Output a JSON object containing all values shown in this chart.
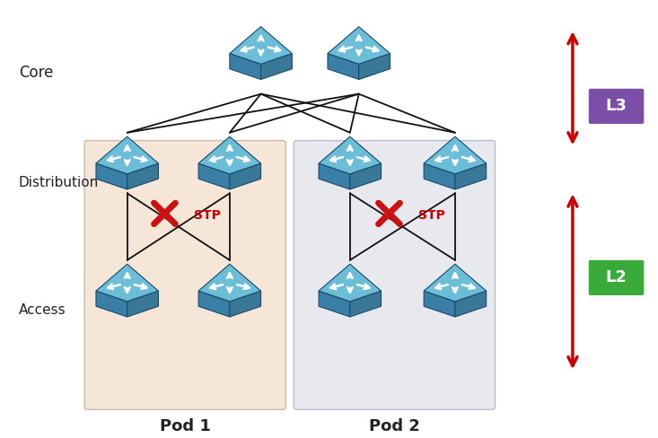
{
  "background_color": "#ffffff",
  "pod1_bg": "#f5e6d8",
  "pod2_bg": "#e8e8ef",
  "arrow_color": "#cc0000",
  "stp_color": "#cc0000",
  "l3_box_color": "#7b4fa6",
  "l2_box_color": "#3aaa3a",
  "label_color": "#222222",
  "core_label": "Core",
  "dist_label": "Distribution",
  "access_label": "Access",
  "pod1_label": "Pod 1",
  "pod2_label": "Pod 2",
  "l3_label": "L3",
  "l2_label": "L2",
  "stp_label": "STP",
  "sw_front": "#4e9fc0",
  "sw_top": "#6bbdd8",
  "sw_left": "#3a7fa5",
  "sw_right": "#2d6b90",
  "sw_edge": "#1a4a6a"
}
